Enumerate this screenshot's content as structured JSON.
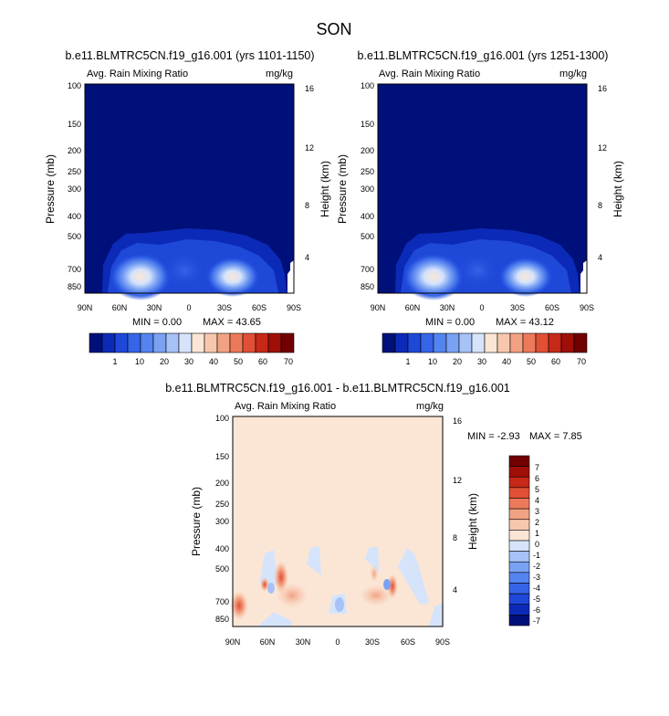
{
  "figure": {
    "title": "SON"
  },
  "colors": {
    "abs_scale": [
      "#00107a",
      "#0c2ab8",
      "#1e48d8",
      "#3564e8",
      "#5484ef",
      "#7aa2f3",
      "#a6c2f7",
      "#d6e4fb",
      "#fbe6d6",
      "#f7c7ad",
      "#f2a283",
      "#ec7a5a",
      "#e14f35",
      "#c72818",
      "#a00e08",
      "#710000"
    ],
    "diff_scale": [
      "#00107a",
      "#0c2ab8",
      "#1e48d8",
      "#3564e8",
      "#5484ef",
      "#7aa2f3",
      "#a6c2f7",
      "#d6e4fb",
      "#fbe6d6",
      "#f7c7ad",
      "#f2a283",
      "#ec7a5a",
      "#e14f35",
      "#c72818",
      "#a00e08",
      "#710000"
    ]
  },
  "chart_data": [
    {
      "type": "heatmap",
      "title": "b.e11.BLMTRC5CN.f19_g16.001 (yrs 1101-1150)",
      "subtitle_left": "Avg. Rain Mixing Ratio",
      "subtitle_right": "mg/kg",
      "xlabel": "",
      "ylabel": "Pressure (mb)",
      "ylabel_right": "Height (km)",
      "x_ticks": [
        "90N",
        "60N",
        "30N",
        "0",
        "30S",
        "60S",
        "90S"
      ],
      "y_ticks": [
        "100",
        "150",
        "200",
        "250",
        "300",
        "400",
        "500",
        "700",
        "850"
      ],
      "y_ticks_right": [
        "16",
        "12",
        "8",
        "4"
      ],
      "min_label": "MIN =   0.00",
      "max_label": "MAX =  43.65",
      "colorbar_labels": [
        "1",
        "10",
        "20",
        "30",
        "40",
        "50",
        "60",
        "70"
      ]
    },
    {
      "type": "heatmap",
      "title": "b.e11.BLMTRC5CN.f19_g16.001 (yrs 1251-1300)",
      "subtitle_left": "Avg. Rain Mixing Ratio",
      "subtitle_right": "mg/kg",
      "xlabel": "",
      "ylabel": "Pressure (mb)",
      "ylabel_right": "Height (km)",
      "x_ticks": [
        "90N",
        "60N",
        "30N",
        "0",
        "30S",
        "60S",
        "90S"
      ],
      "y_ticks": [
        "100",
        "150",
        "200",
        "250",
        "300",
        "400",
        "500",
        "700",
        "850"
      ],
      "y_ticks_right": [
        "16",
        "12",
        "8",
        "4"
      ],
      "min_label": "MIN =   0.00",
      "max_label": "MAX =  43.12",
      "colorbar_labels": [
        "1",
        "10",
        "20",
        "30",
        "40",
        "50",
        "60",
        "70"
      ]
    },
    {
      "type": "heatmap",
      "title": "b.e11.BLMTRC5CN.f19_g16.001 - b.e11.BLMTRC5CN.f19_g16.001",
      "subtitle_left": "Avg. Rain Mixing Ratio",
      "subtitle_right": "mg/kg",
      "xlabel": "",
      "ylabel": "Pressure (mb)",
      "ylabel_right": "Height (km)",
      "x_ticks": [
        "90N",
        "60N",
        "30N",
        "0",
        "30S",
        "60S",
        "90S"
      ],
      "y_ticks": [
        "100",
        "150",
        "200",
        "250",
        "300",
        "400",
        "500",
        "700",
        "850"
      ],
      "y_ticks_right": [
        "16",
        "12",
        "8",
        "4"
      ],
      "min_label": "MIN =  -2.93",
      "max_label": "MAX =   7.85",
      "colorbar_labels": [
        "7",
        "6",
        "5",
        "4",
        "3",
        "2",
        "1",
        "0",
        "-1",
        "-2",
        "-3",
        "-4",
        "-5",
        "-6",
        "-7"
      ]
    }
  ]
}
